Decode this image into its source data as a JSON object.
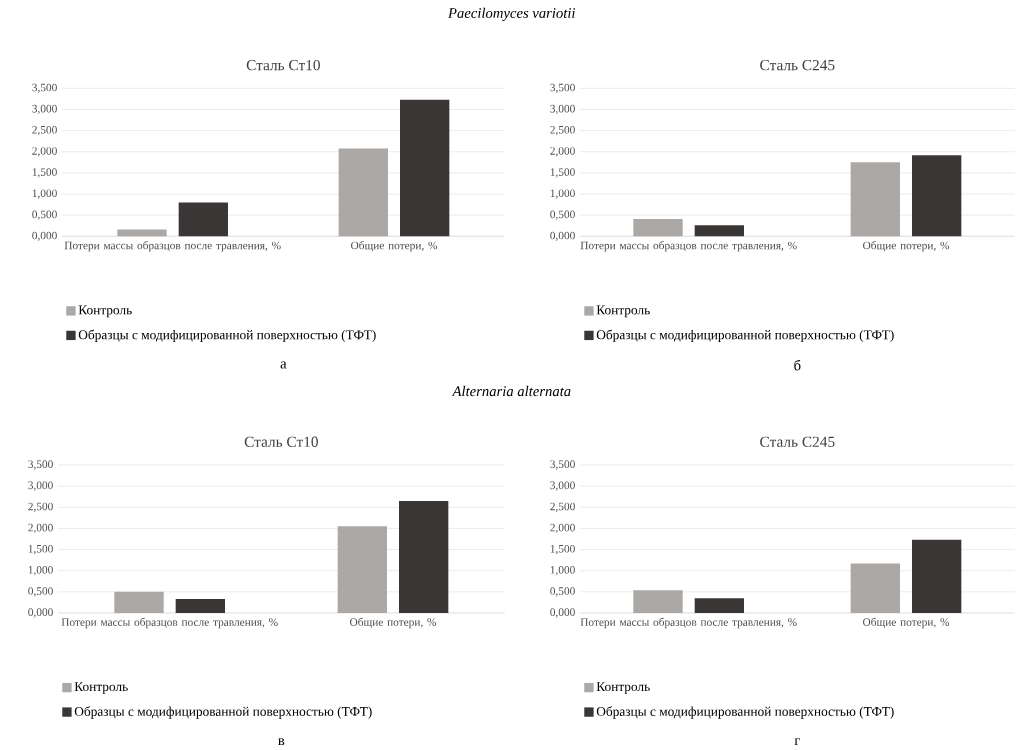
{
  "chart_data": [
    {
      "type": "bar",
      "title": "Сталь Ст10",
      "categories": [
        "Потери массы образцов после травления, %",
        "Общие потери, %"
      ],
      "series": [
        {
          "name": "Контроль",
          "color": "#aba8a6",
          "values": [
            0.16,
            2.08
          ]
        },
        {
          "name": "Образцы с модифицированной поверхностью (ТФТ)",
          "color": "#3a3636",
          "values": [
            0.8,
            3.23
          ]
        }
      ],
      "ylim": [
        0,
        3.5
      ],
      "yticks": [
        {
          "value": 0,
          "label": "0,000"
        },
        {
          "value": 0.5,
          "label": "0,500"
        },
        {
          "value": 1,
          "label": "1,000"
        },
        {
          "value": 1.5,
          "label": "1,500"
        },
        {
          "value": 2,
          "label": "2,000"
        },
        {
          "value": 2.5,
          "label": "2,500"
        },
        {
          "value": 3,
          "label": "3,000"
        },
        {
          "value": 3.5,
          "label": "3,500"
        }
      ],
      "grid": "y",
      "legend": "bottom",
      "annotations": [
        "Paecilomyces variotii",
        "а"
      ]
    },
    {
      "type": "bar",
      "title": "Сталь С245",
      "categories": [
        "Потери массы образцов после травления, %",
        "Общие потери, %"
      ],
      "series": [
        {
          "name": "Контроль",
          "color": "#aba8a6",
          "values": [
            0.41,
            1.75
          ]
        },
        {
          "name": "Образцы с модифицированной поверхностью (ТФТ)",
          "color": "#3a3636",
          "values": [
            0.26,
            1.92
          ]
        }
      ],
      "ylim": [
        0,
        3.5
      ],
      "yticks": [
        {
          "value": 0,
          "label": "0,000"
        },
        {
          "value": 0.5,
          "label": "0,500"
        },
        {
          "value": 1,
          "label": "1,000"
        },
        {
          "value": 1.5,
          "label": "1,500"
        },
        {
          "value": 2,
          "label": "2,000"
        },
        {
          "value": 2.5,
          "label": "2,500"
        },
        {
          "value": 3,
          "label": "3,000"
        },
        {
          "value": 3.5,
          "label": "3,500"
        }
      ],
      "grid": "y",
      "legend": "bottom",
      "annotations": [
        "б"
      ]
    },
    {
      "type": "bar",
      "title": "Сталь Ст10",
      "categories": [
        "Потери массы образцов после травления, %",
        "Общие потери, %"
      ],
      "series": [
        {
          "name": "Контроль",
          "color": "#aba8a6",
          "values": [
            0.5,
            2.05
          ]
        },
        {
          "name": "Образцы с модифицированной поверхностью (ТФТ)",
          "color": "#3a3636",
          "values": [
            0.33,
            2.65
          ]
        }
      ],
      "ylim": [
        0,
        3.5
      ],
      "yticks": [
        {
          "value": 0,
          "label": "0,000"
        },
        {
          "value": 0.5,
          "label": "0,500"
        },
        {
          "value": 1,
          "label": "1,000"
        },
        {
          "value": 1.5,
          "label": "1,500"
        },
        {
          "value": 2,
          "label": "2,000"
        },
        {
          "value": 2.5,
          "label": "2,500"
        },
        {
          "value": 3,
          "label": "3,000"
        },
        {
          "value": 3.5,
          "label": "3,500"
        }
      ],
      "grid": "y",
      "legend": "bottom",
      "annotations": [
        "Alternaria alternata",
        "в"
      ]
    },
    {
      "type": "bar",
      "title": "Сталь С245",
      "categories": [
        "Потери массы образцов после травления, %",
        "Общие потери, %"
      ],
      "series": [
        {
          "name": "Контроль",
          "color": "#aba8a6",
          "values": [
            0.54,
            1.17
          ]
        },
        {
          "name": "Образцы с модифицированной поверхностью (ТФТ)",
          "color": "#3a3636",
          "values": [
            0.35,
            1.73
          ]
        }
      ],
      "ylim": [
        0,
        3.5
      ],
      "yticks": [
        {
          "value": 0,
          "label": "0,000"
        },
        {
          "value": 0.5,
          "label": "0,500"
        },
        {
          "value": 1,
          "label": "1,000"
        },
        {
          "value": 1.5,
          "label": "1,500"
        },
        {
          "value": 2,
          "label": "2,000"
        },
        {
          "value": 2.5,
          "label": "2,500"
        },
        {
          "value": 3,
          "label": "3,000"
        },
        {
          "value": 3.5,
          "label": "3,500"
        }
      ],
      "grid": "y",
      "legend": "bottom",
      "annotations": [
        "г"
      ]
    }
  ]
}
